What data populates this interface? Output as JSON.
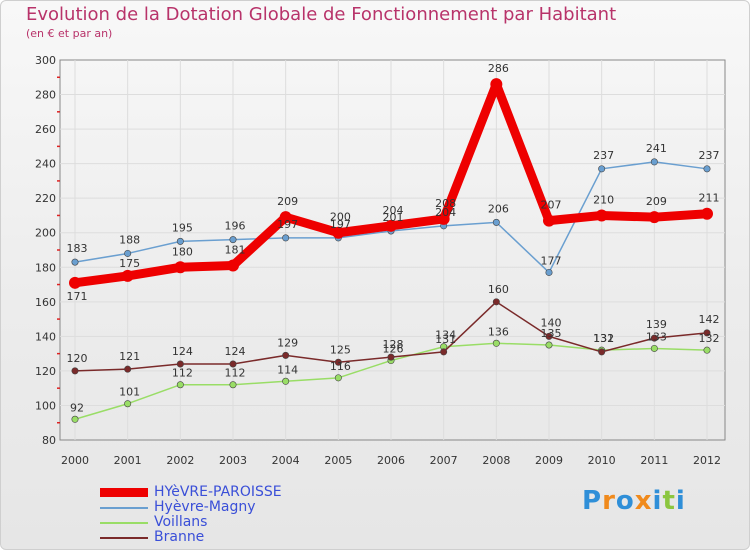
{
  "chart_data": {
    "type": "line",
    "title": "Evolution de la Dotation Globale de Fonctionnement par Habitant",
    "subtitle": "(en € et par an)",
    "xlabel": "",
    "ylabel": "",
    "ylim": [
      80,
      300
    ],
    "yticks": [
      80,
      100,
      120,
      140,
      160,
      180,
      200,
      220,
      240,
      260,
      280,
      300
    ],
    "grid": true,
    "categories": [
      "2000",
      "2001",
      "2002",
      "2003",
      "2004",
      "2005",
      "2006",
      "2007",
      "2008",
      "2009",
      "2010",
      "2011",
      "2012"
    ],
    "series": [
      {
        "name": "HYèVRE-PAROISSE",
        "color": "#ee0000",
        "values": [
          171,
          175,
          180,
          181,
          209,
          200,
          204,
          208,
          286,
          207,
          210,
          209,
          211
        ]
      },
      {
        "name": "Hyèvre-Magny",
        "color": "#6a9fd0",
        "values": [
          183,
          188,
          195,
          196,
          197,
          197,
          201,
          204,
          206,
          177,
          237,
          241,
          237
        ]
      },
      {
        "name": "Voillans",
        "color": "#99dd66",
        "values": [
          92,
          101,
          112,
          112,
          114,
          116,
          126,
          134,
          136,
          135,
          132,
          133,
          132
        ]
      },
      {
        "name": "Branne",
        "color": "#7a2a2a",
        "values": [
          120,
          121,
          124,
          124,
          129,
          125,
          128,
          131,
          160,
          140,
          131,
          139,
          142
        ]
      }
    ]
  },
  "logo": {
    "text": "Proxiti",
    "letters": [
      "P",
      "r",
      "o",
      "x",
      "i",
      "t",
      "i"
    ]
  }
}
